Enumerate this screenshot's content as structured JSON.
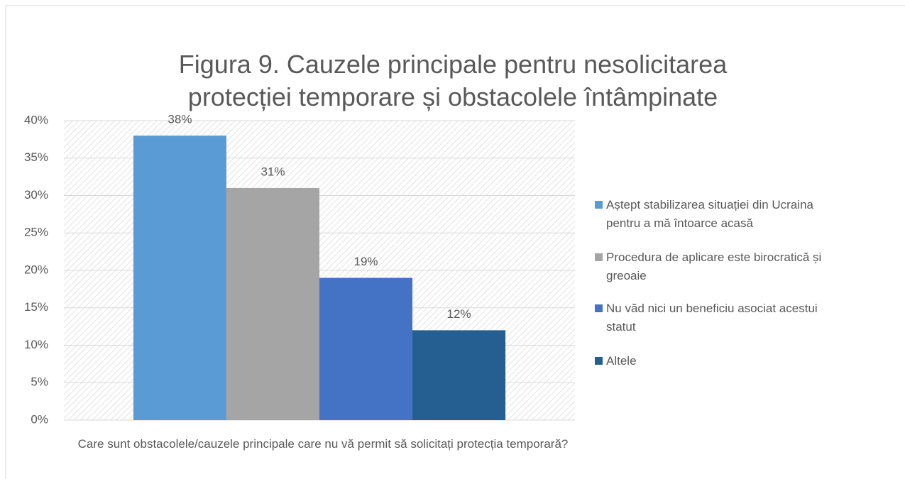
{
  "chart_data": {
    "type": "bar",
    "title": "Figura 9. Cauzele principale pentru nesolicitarea protecției temporare și obstacolele întâmpinate",
    "categories": [
      "Care sunt obstacolele/cauzele principale care nu vă permit să solicitați protecția temporară?"
    ],
    "series": [
      {
        "name": "Aștept stabilizarea situației din Ucraina pentru a mă întoarce acasă",
        "color": "#5b9bd5",
        "values": [
          38
        ],
        "value_labels": [
          "38%"
        ]
      },
      {
        "name": "Procedura de aplicare este birocratică și greoaie",
        "color": "#a5a5a5",
        "values": [
          31
        ],
        "value_labels": [
          "31%"
        ]
      },
      {
        "name": "Nu văd nici un beneficiu asociat acestui statut",
        "color": "#4472c4",
        "values": [
          19
        ],
        "value_labels": [
          "19%"
        ]
      },
      {
        "name": "Altele",
        "color": "#255e91",
        "values": [
          12
        ],
        "value_labels": [
          "12%"
        ]
      }
    ],
    "ylim": [
      0,
      40
    ],
    "yticks": [
      {
        "value": 0,
        "label": "0%"
      },
      {
        "value": 5,
        "label": "5%"
      },
      {
        "value": 10,
        "label": "10%"
      },
      {
        "value": 15,
        "label": "15%"
      },
      {
        "value": 20,
        "label": "20%"
      },
      {
        "value": 25,
        "label": "25%"
      },
      {
        "value": 30,
        "label": "30%"
      },
      {
        "value": 35,
        "label": "35%"
      },
      {
        "value": 40,
        "label": "40%"
      }
    ],
    "grid": true,
    "legend": "right"
  }
}
